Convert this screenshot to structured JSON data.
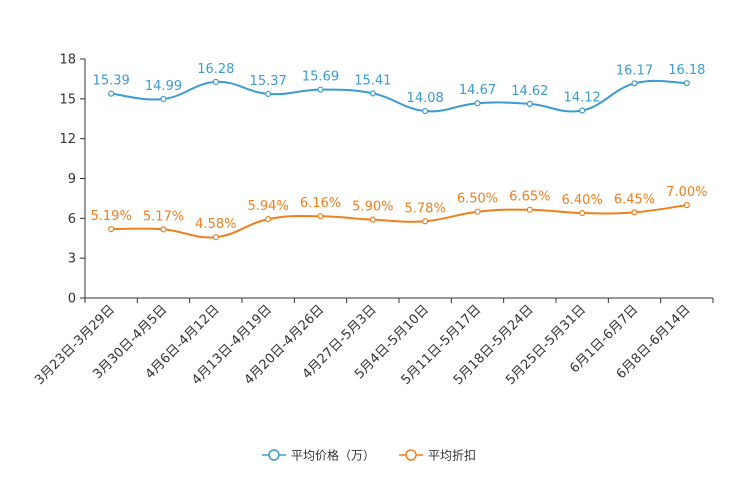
{
  "chart_data": {
    "type": "line",
    "categories": [
      "3月23日-3月29日",
      "3月30日-4月5日",
      "4月6日-4月12日",
      "4月13日-4月19日",
      "4月20日-4月26日",
      "4月27日-5月3日",
      "5月4日-5月10日",
      "5月11日-5月17日",
      "5月18日-5月24日",
      "5月25日-5月31日",
      "6月1日-6月7日",
      "6月8日-6月14日"
    ],
    "ylim": [
      0,
      18
    ],
    "yticks": [
      0,
      3,
      6,
      9,
      12,
      15,
      18
    ],
    "series": [
      {
        "name": "平均价格（万）",
        "color": "#3b9bd1",
        "values": [
          15.39,
          14.99,
          16.28,
          15.37,
          15.69,
          15.41,
          14.08,
          14.67,
          14.62,
          14.12,
          16.17,
          16.18
        ],
        "labels": [
          "15.39",
          "14.99",
          "16.28",
          "15.37",
          "15.69",
          "15.41",
          "14.08",
          "14.67",
          "14.62",
          "14.12",
          "16.17",
          "16.18"
        ]
      },
      {
        "name": "平均折扣",
        "color": "#f07f1d",
        "values": [
          5.19,
          5.17,
          4.58,
          5.94,
          6.16,
          5.9,
          5.78,
          6.5,
          6.65,
          6.4,
          6.45,
          7.0
        ],
        "labels": [
          "5.19%",
          "5.17%",
          "4.58%",
          "5.94%",
          "6.16%",
          "5.90%",
          "5.78%",
          "6.50%",
          "6.65%",
          "6.40%",
          "6.45%",
          "7.00%"
        ]
      }
    ],
    "legend_position": "bottom-center",
    "grid": false
  }
}
